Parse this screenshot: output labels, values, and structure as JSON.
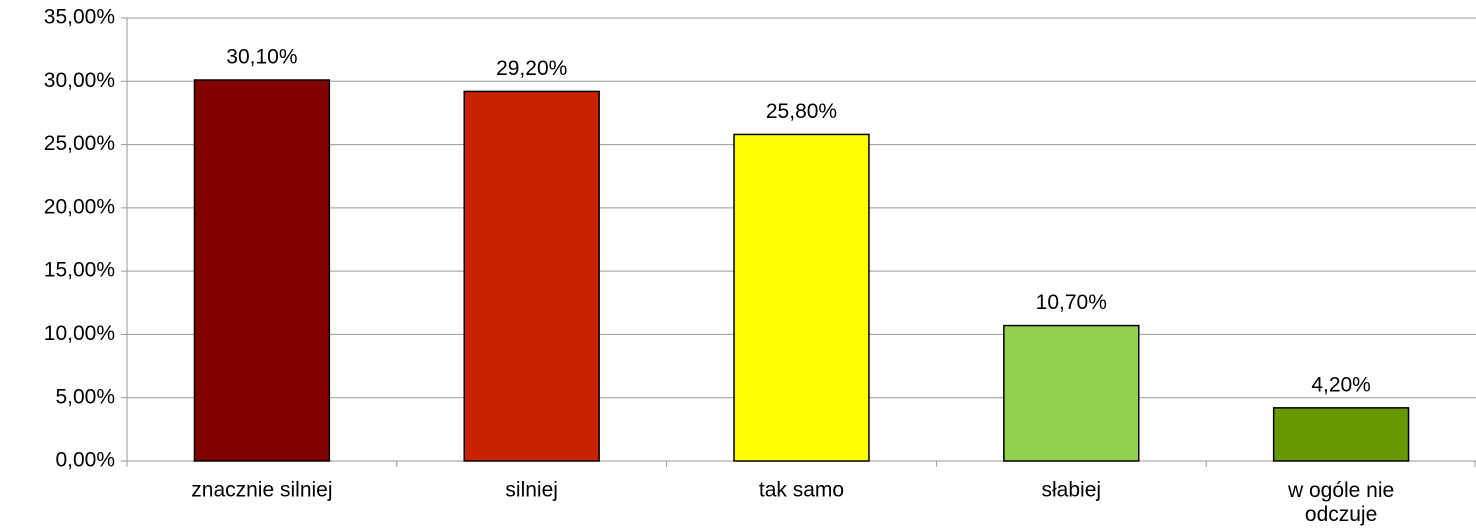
{
  "chart_data": {
    "type": "bar",
    "categories": [
      "znacznie silniej",
      "silniej",
      "tak samo",
      "słabiej",
      "w ogóle nie odczuje"
    ],
    "values": [
      30.1,
      29.2,
      25.8,
      10.7,
      4.2
    ],
    "value_labels": [
      "30,10%",
      "29,20%",
      "25,80%",
      "10,70%",
      "4,20%"
    ],
    "colors": [
      "#800000",
      "#c82200",
      "#ffff00",
      "#92d050",
      "#669900"
    ],
    "ylim": [
      0,
      35
    ],
    "yticks": [
      {
        "value": 0,
        "label": "0,00%"
      },
      {
        "value": 5,
        "label": "5,00%"
      },
      {
        "value": 10,
        "label": "10,00%"
      },
      {
        "value": 15,
        "label": "15,00%"
      },
      {
        "value": 20,
        "label": "20,00%"
      },
      {
        "value": 25,
        "label": "25,00%"
      },
      {
        "value": 30,
        "label": "30,00%"
      },
      {
        "value": 35,
        "label": "35,00%"
      }
    ],
    "grid": true
  }
}
